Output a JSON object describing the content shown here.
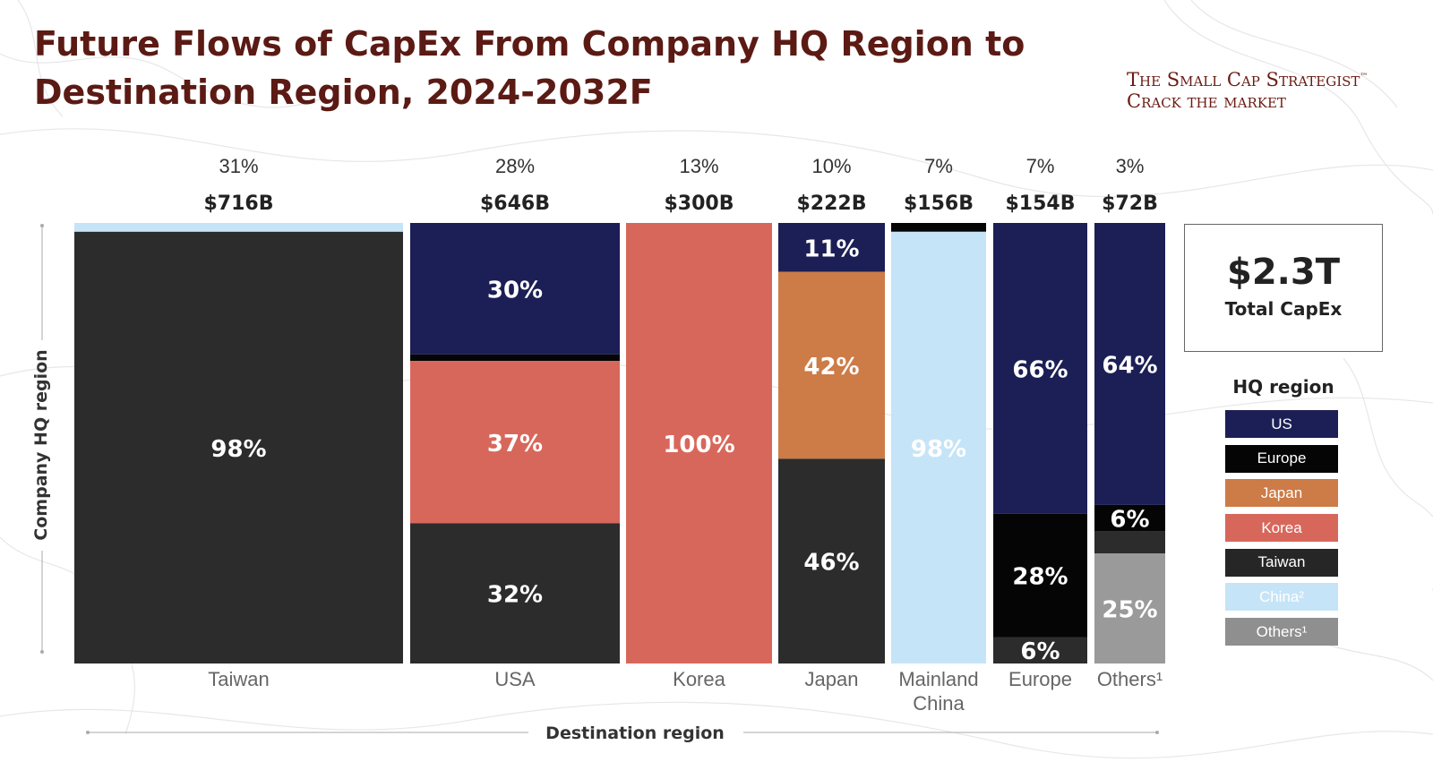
{
  "header": {
    "title_line1": "Future Flows of CapEx From Company HQ Region to",
    "title_line2": "Destination Region, 2024-2032F"
  },
  "brand": {
    "line1": "The Small Cap Strategist",
    "tm": "™",
    "line2": "Crack the market"
  },
  "total": {
    "value": "$2.3T",
    "label": "Total CapEx"
  },
  "legend": {
    "title": "HQ region",
    "items": [
      {
        "label": "US",
        "color": "#1c1f55",
        "text_color": "#ffffff"
      },
      {
        "label": "Europe",
        "color": "#050505",
        "text_color": "#ffffff"
      },
      {
        "label": "Japan",
        "color": "#cd7b47",
        "text_color": "#ffffff"
      },
      {
        "label": "Korea",
        "color": "#d8675b",
        "text_color": "#ffffff"
      },
      {
        "label": "Taiwan",
        "color": "#262626",
        "text_color": "#ffffff"
      },
      {
        "label": "China²",
        "color": "#c6e4f7",
        "text_color": "#ffffff"
      },
      {
        "label": "Others¹",
        "color": "#8f8f8f",
        "text_color": "#ffffff"
      }
    ]
  },
  "chart_data": {
    "type": "marimekko",
    "title": "Future Flows of CapEx From Company HQ Region to Destination Region, 2024-2032F",
    "xlabel": "Destination region",
    "ylabel": "Company HQ region",
    "hq_colors": {
      "US": "#1c1f55",
      "Europe": "#050505",
      "Japan": "#cd7b47",
      "Korea": "#d8675b",
      "Taiwan": "#2c2c2c",
      "China": "#c6e4f7",
      "Others": "#9a9a9a"
    },
    "columns": [
      {
        "destination": "Taiwan",
        "share": "31%",
        "amount": "$716B",
        "segments": [
          {
            "hq": "China",
            "value": 2,
            "label": ""
          },
          {
            "hq": "Taiwan",
            "value": 98,
            "label": "98%"
          }
        ]
      },
      {
        "destination": "USA",
        "share": "28%",
        "amount": "$646B",
        "segments": [
          {
            "hq": "US",
            "value": 30,
            "label": "30%"
          },
          {
            "hq": "Europe",
            "value": 1.5,
            "label": ""
          },
          {
            "hq": "Korea",
            "value": 37,
            "label": "37%"
          },
          {
            "hq": "Taiwan",
            "value": 32,
            "label": "32%"
          }
        ]
      },
      {
        "destination": "Korea",
        "share": "13%",
        "amount": "$300B",
        "segments": [
          {
            "hq": "Korea",
            "value": 100,
            "label": "100%"
          }
        ]
      },
      {
        "destination": "Japan",
        "share": "10%",
        "amount": "$222B",
        "segments": [
          {
            "hq": "US",
            "value": 11,
            "label": "11%"
          },
          {
            "hq": "Japan",
            "value": 42,
            "label": "42%"
          },
          {
            "hq": "Taiwan",
            "value": 46,
            "label": "46%"
          }
        ]
      },
      {
        "destination": "Mainland China",
        "share": "7%",
        "amount": "$156B",
        "segments": [
          {
            "hq": "Europe",
            "value": 2,
            "label": ""
          },
          {
            "hq": "China",
            "value": 98,
            "label": "98%"
          }
        ]
      },
      {
        "destination": "Europe",
        "share": "7%",
        "amount": "$154B",
        "segments": [
          {
            "hq": "US",
            "value": 66,
            "label": "66%"
          },
          {
            "hq": "Europe",
            "value": 28,
            "label": "28%"
          },
          {
            "hq": "Taiwan",
            "value": 6,
            "label": "6%"
          }
        ]
      },
      {
        "destination": "Others¹",
        "share": "3%",
        "amount": "$72B",
        "segments": [
          {
            "hq": "US",
            "value": 64,
            "label": "64%"
          },
          {
            "hq": "Europe",
            "value": 6,
            "label": "6%"
          },
          {
            "hq": "Taiwan",
            "value": 5,
            "label": ""
          },
          {
            "hq": "Others",
            "value": 25,
            "label": "25%"
          }
        ]
      }
    ]
  }
}
